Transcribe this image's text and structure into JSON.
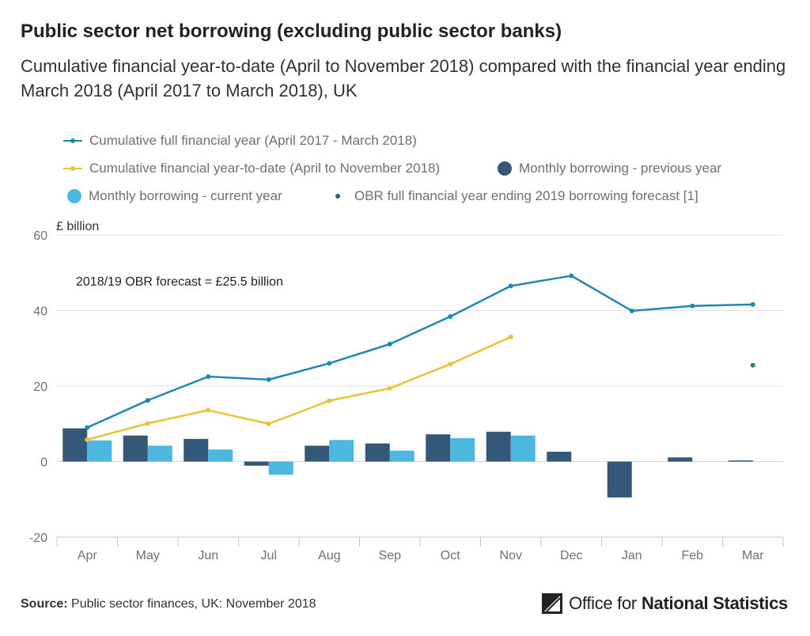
{
  "header": {
    "title": "Public sector net borrowing (excluding public sector banks)",
    "subtitle": "Cumulative financial year-to-date (April to November 2018) compared with the financial year ending March 2018 (April 2017 to March 2018), UK"
  },
  "colors": {
    "cumulative_full": "#1f87b4",
    "cumulative_ytd": "#e8c33a",
    "monthly_prev": "#345877",
    "monthly_curr": "#4cb8e0",
    "obr": "#2e7d5b",
    "grid": "#e0e0e0",
    "axis": "#c8c8c8"
  },
  "legend": [
    {
      "key": "cumulative_full",
      "label": "Cumulative full financial year (April 2017 - March 2018)",
      "style": "line"
    },
    {
      "key": "cumulative_ytd",
      "label": "Cumulative financial year-to-date (April to November 2018)",
      "style": "line"
    },
    {
      "key": "monthly_prev",
      "label": "Monthly borrowing - previous year",
      "style": "bar"
    },
    {
      "key": "monthly_curr",
      "label": "Monthly borrowing - current year",
      "style": "bar"
    },
    {
      "key": "obr",
      "label": "OBR full financial year ending 2019 borrowing forecast [1]",
      "style": "dot"
    }
  ],
  "chart_data": {
    "type": "bar",
    "title": "Public sector net borrowing (excluding public sector banks)",
    "ylabel": "£ billion",
    "xlabel": "",
    "ylim": [
      -20,
      60
    ],
    "yticks": [
      -20,
      0,
      20,
      40,
      60
    ],
    "grid": true,
    "categories": [
      "Apr",
      "May",
      "Jun",
      "Jul",
      "Aug",
      "Sep",
      "Oct",
      "Nov",
      "Dec",
      "Jan",
      "Feb",
      "Mar"
    ],
    "series": [
      {
        "name": "Monthly borrowing - previous year",
        "type": "bar",
        "key": "monthly_prev",
        "values": [
          8.8,
          6.9,
          6.0,
          -1.1,
          4.2,
          4.8,
          7.2,
          7.9,
          2.6,
          -9.5,
          1.1,
          0.3
        ]
      },
      {
        "name": "Monthly borrowing - current year",
        "type": "bar",
        "key": "monthly_curr",
        "values": [
          5.6,
          4.2,
          3.2,
          -3.5,
          5.7,
          2.9,
          6.2,
          6.9,
          null,
          null,
          null,
          null
        ]
      },
      {
        "name": "Cumulative full financial year (April 2017 - March 2018)",
        "type": "line",
        "key": "cumulative_full",
        "values": [
          9.0,
          16.2,
          22.5,
          21.7,
          26.0,
          31.1,
          38.4,
          46.5,
          49.2,
          39.9,
          41.2,
          41.6
        ]
      },
      {
        "name": "Cumulative financial year-to-date (April to November 2018)",
        "type": "line",
        "key": "cumulative_ytd",
        "values": [
          5.8,
          10.1,
          13.6,
          10.0,
          16.1,
          19.4,
          25.8,
          33.0,
          null,
          null,
          null,
          null
        ]
      },
      {
        "name": "OBR full financial year ending 2019 borrowing forecast [1]",
        "type": "point",
        "key": "obr",
        "values": [
          null,
          null,
          null,
          null,
          null,
          null,
          null,
          null,
          null,
          null,
          null,
          25.5
        ]
      }
    ],
    "annotations": [
      {
        "text": "2018/19 OBR forecast = £25.5 billion"
      }
    ]
  },
  "footer": {
    "source_label": "Source:",
    "source_text": "Public sector finances, UK: November 2018",
    "logo_thin": "Office for",
    "logo_bold": "National Statistics"
  }
}
